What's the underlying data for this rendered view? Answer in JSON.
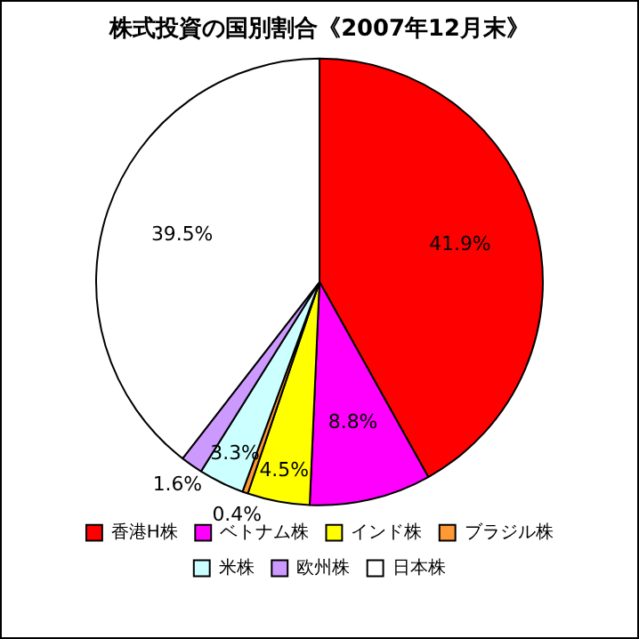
{
  "chart_data": {
    "type": "pie",
    "title": "株式投資の国別割合《2007年12月末》",
    "categories": [
      "香港H株",
      "ベトナム株",
      "インド株",
      "ブラジル株",
      "米株",
      "欧州株",
      "日本株"
    ],
    "values": [
      41.9,
      8.8,
      4.5,
      0.4,
      3.3,
      1.6,
      39.5
    ],
    "colors": [
      "#ff0000",
      "#ff00ff",
      "#ffff00",
      "#ff9933",
      "#ccffff",
      "#cc99ff",
      "#ffffff"
    ],
    "value_labels": [
      "41.9%",
      "8.8%",
      "4.5%",
      "0.4%",
      "3.3%",
      "1.6%",
      "39.5%"
    ],
    "legend": "bottom"
  }
}
